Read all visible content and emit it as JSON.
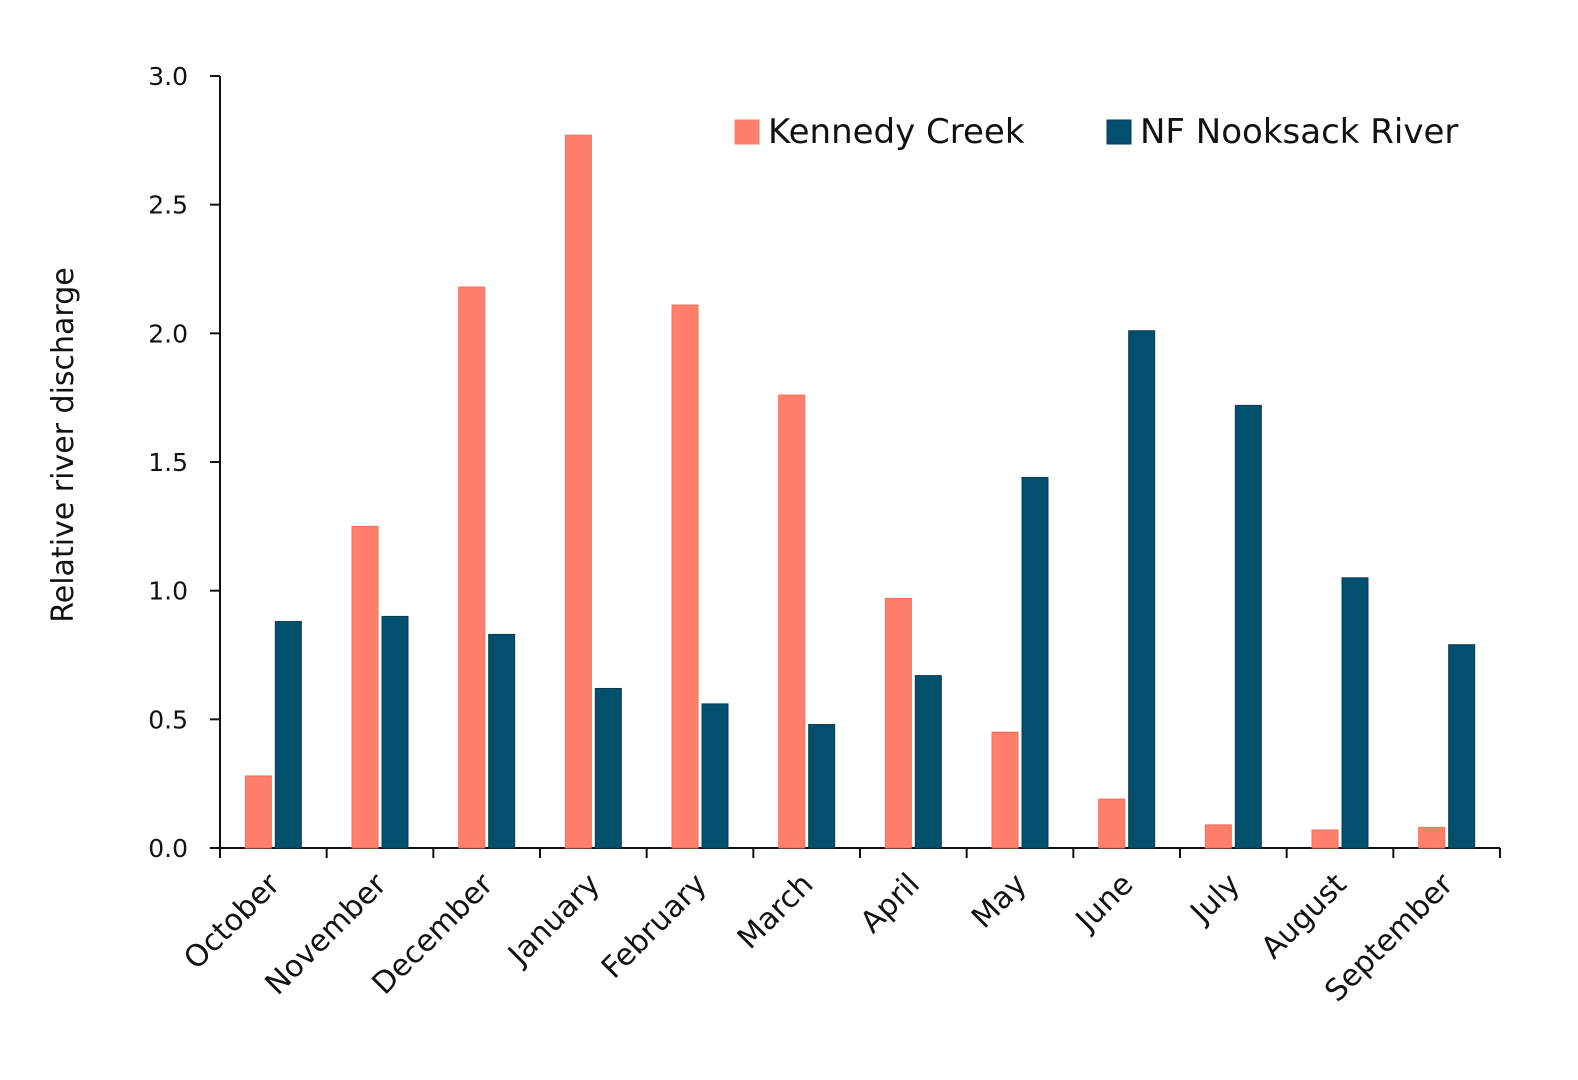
{
  "chart_data": {
    "type": "bar",
    "title": "",
    "xlabel": "",
    "ylabel": "Relative river discharge",
    "ylim": [
      0,
      3
    ],
    "yticks": [
      "0.0",
      "0.5",
      "1.0",
      "1.5",
      "2.0",
      "2.5",
      "3.0"
    ],
    "categories": [
      "October",
      "November",
      "December",
      "January",
      "February",
      "March",
      "April",
      "May",
      "June",
      "July",
      "August",
      "September"
    ],
    "series": [
      {
        "name": "Kennedy Creek",
        "color": "#FF7F6A",
        "values": [
          0.28,
          1.25,
          2.18,
          2.77,
          2.11,
          1.76,
          0.97,
          0.45,
          0.19,
          0.09,
          0.07,
          0.08
        ]
      },
      {
        "name": "NF Nooksack River",
        "color": "#034F6E",
        "values": [
          0.88,
          0.9,
          0.83,
          0.62,
          0.56,
          0.48,
          0.67,
          1.44,
          2.01,
          1.72,
          1.05,
          0.79
        ]
      }
    ],
    "grid": false,
    "legend": "top-right"
  }
}
